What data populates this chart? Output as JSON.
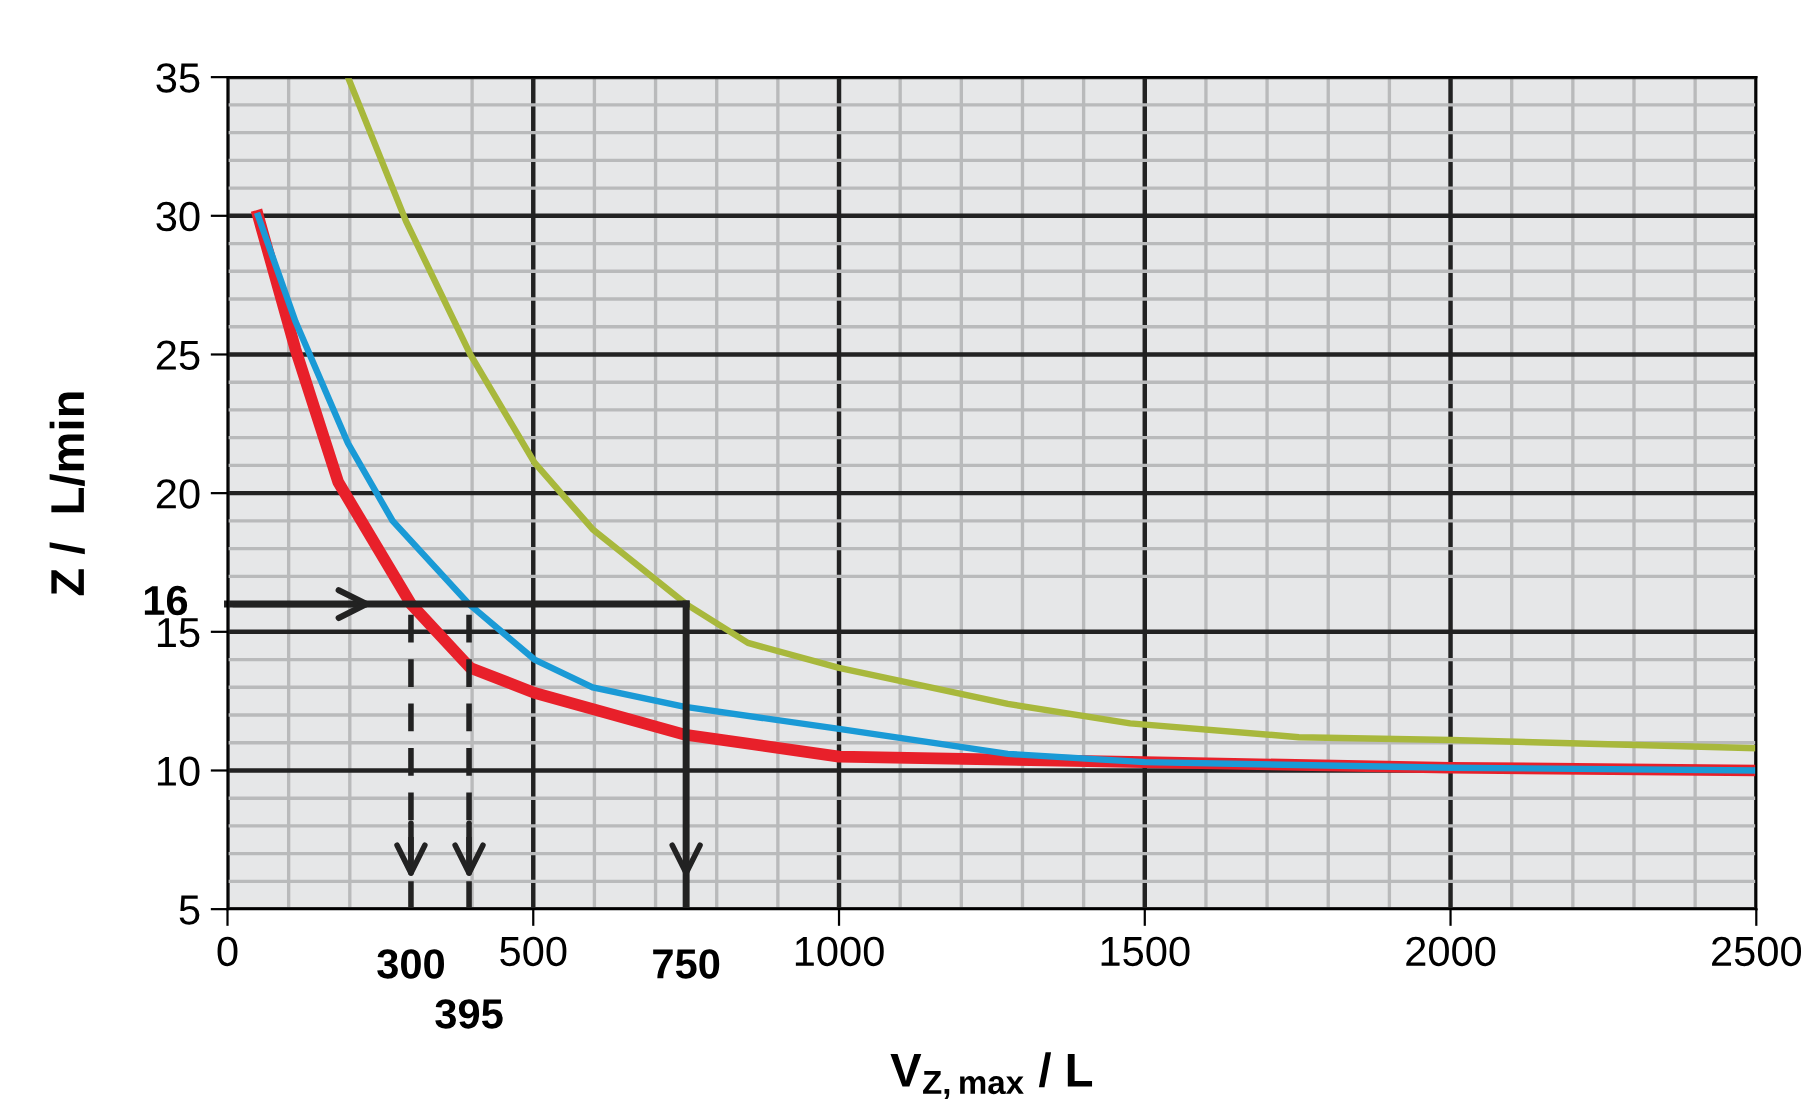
{
  "chart_data": {
    "type": "line",
    "xlabel": "V$_{Z,max}$ / L",
    "ylabel": "Z /  L/min",
    "xlim": [
      0,
      2500
    ],
    "ylim": [
      5,
      35
    ],
    "xticks": [
      0,
      500,
      1000,
      1500,
      2000,
      2500
    ],
    "yticks": [
      5,
      10,
      15,
      20,
      25,
      30,
      35
    ],
    "grid": true,
    "series": [
      {
        "color": "#e8202a",
        "x": [
          50,
          111,
          181,
          300,
          397,
          502,
          746,
          1000,
          1500,
          2000,
          2500
        ],
        "values": [
          30,
          25.2,
          20.4,
          16,
          13.7,
          12.8,
          11.3,
          10.5,
          10.3,
          10.1,
          10.0
        ]
      },
      {
        "color": "#1a9ad6",
        "x": [
          50,
          111,
          197,
          270,
          395,
          502,
          597,
          746,
          1000,
          1276,
          1500,
          2000,
          2500
        ],
        "values": [
          30,
          26.2,
          21.8,
          19,
          16,
          14.0,
          13.0,
          12.3,
          11.5,
          10.6,
          10.3,
          10.1,
          10.0
        ]
      },
      {
        "color": "#a8b83c",
        "x": [
          197,
          292,
          397,
          502,
          597,
          750,
          851,
          1000,
          1276,
          1476,
          1752,
          2000,
          2500
        ],
        "values": [
          35,
          29.8,
          25,
          21.1,
          18.7,
          16,
          14.6,
          13.7,
          12.4,
          11.7,
          11.2,
          11.1,
          10.8
        ]
      }
    ],
    "ref_lines": [
      {
        "axis": "y",
        "value": 16,
        "label": "16",
        "line_style": "solid"
      },
      {
        "axis": "x",
        "value": 300,
        "label": "300",
        "line_style": "dashed"
      },
      {
        "axis": "x",
        "value": 395,
        "label": "395",
        "line_style": "dashed"
      },
      {
        "axis": "x",
        "value": 750,
        "label": "750",
        "line_style": "solid"
      }
    ]
  }
}
